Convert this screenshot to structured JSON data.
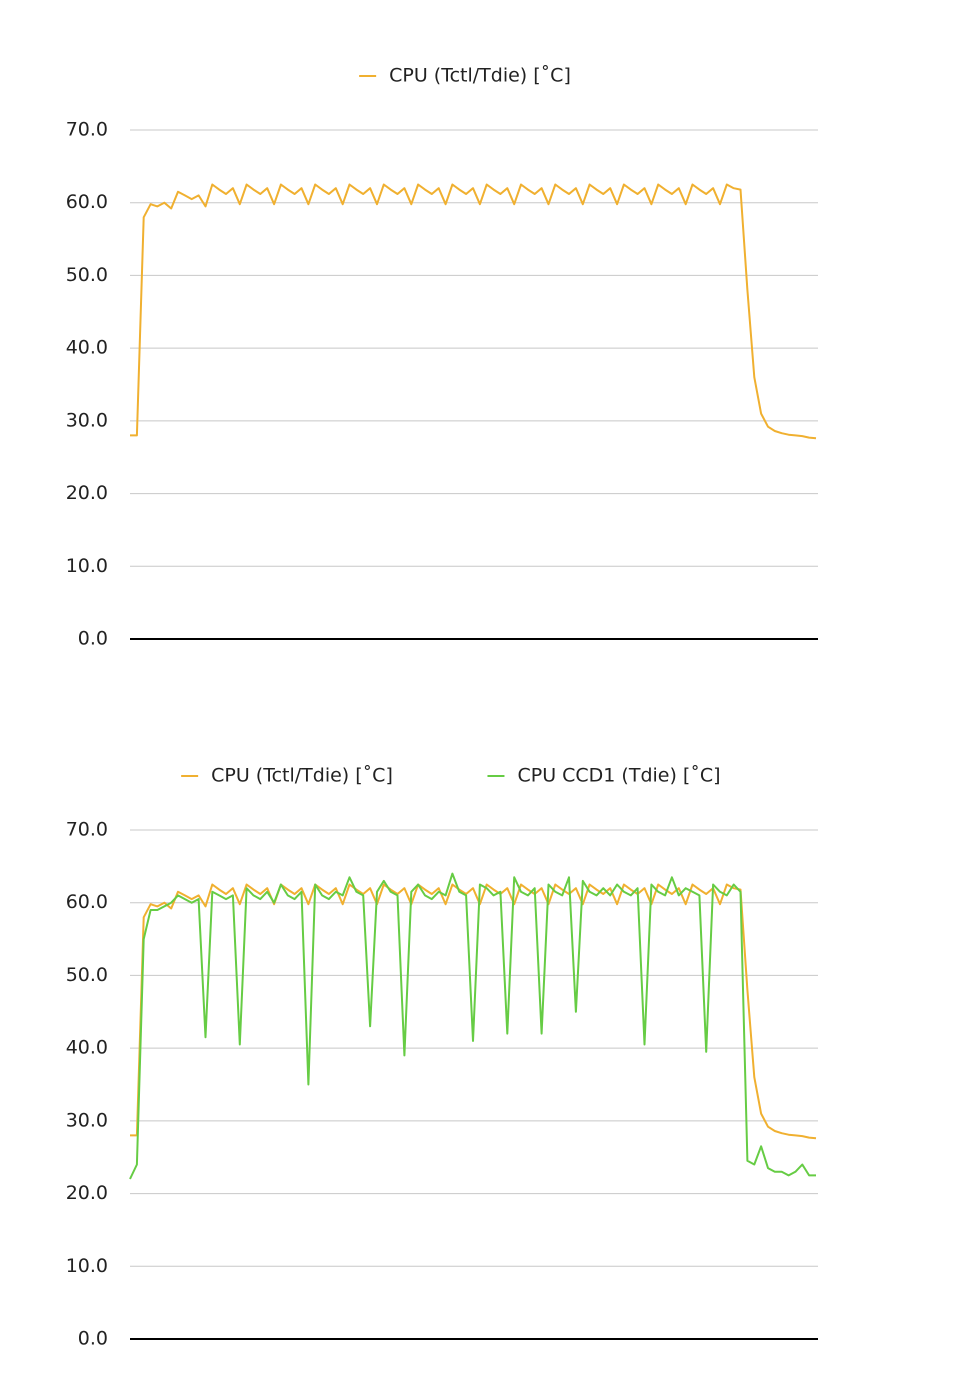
{
  "chart_data": [
    {
      "type": "line",
      "series": [
        {
          "name": "CPU (Tctl/Tdie) [˚C]",
          "color": "#f0b030",
          "values": [
            28,
            28,
            58,
            59.8,
            59.5,
            60,
            59.2,
            61.5,
            61,
            60.5,
            61,
            59.5,
            62.5,
            61.8,
            61.2,
            62,
            59.8,
            62.5,
            61.8,
            61.2,
            62,
            59.8,
            62.5,
            61.8,
            61.2,
            62,
            59.8,
            62.5,
            61.8,
            61.2,
            62,
            59.8,
            62.5,
            61.8,
            61.2,
            62,
            59.8,
            62.5,
            61.8,
            61.2,
            62,
            59.8,
            62.5,
            61.8,
            61.2,
            62,
            59.8,
            62.5,
            61.8,
            61.2,
            62,
            59.8,
            62.5,
            61.8,
            61.2,
            62,
            59.8,
            62.5,
            61.8,
            61.2,
            62,
            59.8,
            62.5,
            61.8,
            61.2,
            62,
            59.8,
            62.5,
            61.8,
            61.2,
            62,
            59.8,
            62.5,
            61.8,
            61.2,
            62,
            59.8,
            62.5,
            61.8,
            61.2,
            62,
            59.8,
            62.5,
            61.8,
            61.2,
            62,
            59.8,
            62.5,
            62,
            61.8,
            48,
            36,
            31,
            29.2,
            28.6,
            28.3,
            28.1,
            28,
            27.9,
            27.7,
            27.6
          ]
        }
      ],
      "ylim": [
        0,
        70
      ],
      "yticks": [
        {
          "value": 0,
          "label": "0.0"
        },
        {
          "value": 10,
          "label": "10.0"
        },
        {
          "value": 20,
          "label": "20.0"
        },
        {
          "value": 30,
          "label": "30.0"
        },
        {
          "value": 40,
          "label": "40.0"
        },
        {
          "value": 50,
          "label": "50.0"
        },
        {
          "value": 60,
          "label": "60.0"
        },
        {
          "value": 70,
          "label": "70.0"
        }
      ],
      "grid": true,
      "legend": "top"
    },
    {
      "type": "line",
      "series": [
        {
          "name": "CPU (Tctl/Tdie) [˚C]",
          "color": "#f0b030",
          "values": [
            28,
            28,
            58,
            59.8,
            59.5,
            60,
            59.2,
            61.5,
            61,
            60.5,
            61,
            59.5,
            62.5,
            61.8,
            61.2,
            62,
            59.8,
            62.5,
            61.8,
            61.2,
            62,
            59.8,
            62.5,
            61.8,
            61.2,
            62,
            59.8,
            62.5,
            61.8,
            61.2,
            62,
            59.8,
            62.5,
            61.8,
            61.2,
            62,
            59.8,
            62.5,
            61.8,
            61.2,
            62,
            59.8,
            62.5,
            61.8,
            61.2,
            62,
            59.8,
            62.5,
            61.8,
            61.2,
            62,
            59.8,
            62.5,
            61.8,
            61.2,
            62,
            59.8,
            62.5,
            61.8,
            61.2,
            62,
            59.8,
            62.5,
            61.8,
            61.2,
            62,
            59.8,
            62.5,
            61.8,
            61.2,
            62,
            59.8,
            62.5,
            61.8,
            61.2,
            62,
            59.8,
            62.5,
            61.8,
            61.2,
            62,
            59.8,
            62.5,
            61.8,
            61.2,
            62,
            59.8,
            62.5,
            62,
            61.8,
            48,
            36,
            31,
            29.2,
            28.6,
            28.3,
            28.1,
            28,
            27.9,
            27.7,
            27.6
          ]
        },
        {
          "name": "CPU CCD1 (Tdie) [˚C]",
          "color": "#66cc44",
          "values": [
            22,
            24,
            55,
            59,
            59,
            59.5,
            60,
            61,
            60.5,
            60,
            60.5,
            41.5,
            61.5,
            61,
            60.5,
            61,
            40.5,
            62,
            61,
            60.5,
            61.5,
            60,
            62.5,
            61,
            60.5,
            61.5,
            35,
            62.5,
            61,
            60.5,
            61.5,
            61,
            63.5,
            61.5,
            61,
            43,
            61.5,
            63,
            61.5,
            61,
            39,
            61.5,
            62.5,
            61,
            60.5,
            61.5,
            61,
            64,
            61.5,
            61,
            41,
            62.5,
            62,
            61,
            61.5,
            42,
            63.5,
            61.5,
            61,
            62,
            42,
            62.5,
            61.5,
            61,
            63.5,
            45,
            63,
            61.5,
            61,
            62,
            61,
            62.5,
            61.5,
            61,
            62,
            40.5,
            62.5,
            61.5,
            61,
            63.5,
            61,
            62,
            61.5,
            61,
            39.5,
            62.5,
            61.5,
            61,
            62.5,
            61.5,
            24.5,
            24,
            26.5,
            23.5,
            23,
            23,
            22.5,
            23,
            24,
            22.5,
            22.5
          ]
        }
      ],
      "ylim": [
        0,
        70
      ],
      "yticks": [
        {
          "value": 0,
          "label": "0.0"
        },
        {
          "value": 10,
          "label": "10.0"
        },
        {
          "value": 20,
          "label": "20.0"
        },
        {
          "value": 30,
          "label": "30.0"
        },
        {
          "value": 40,
          "label": "40.0"
        },
        {
          "value": 50,
          "label": "50.0"
        },
        {
          "value": 60,
          "label": "60.0"
        },
        {
          "value": 70,
          "label": "70.0"
        }
      ],
      "grid": true,
      "legend": "top"
    }
  ]
}
